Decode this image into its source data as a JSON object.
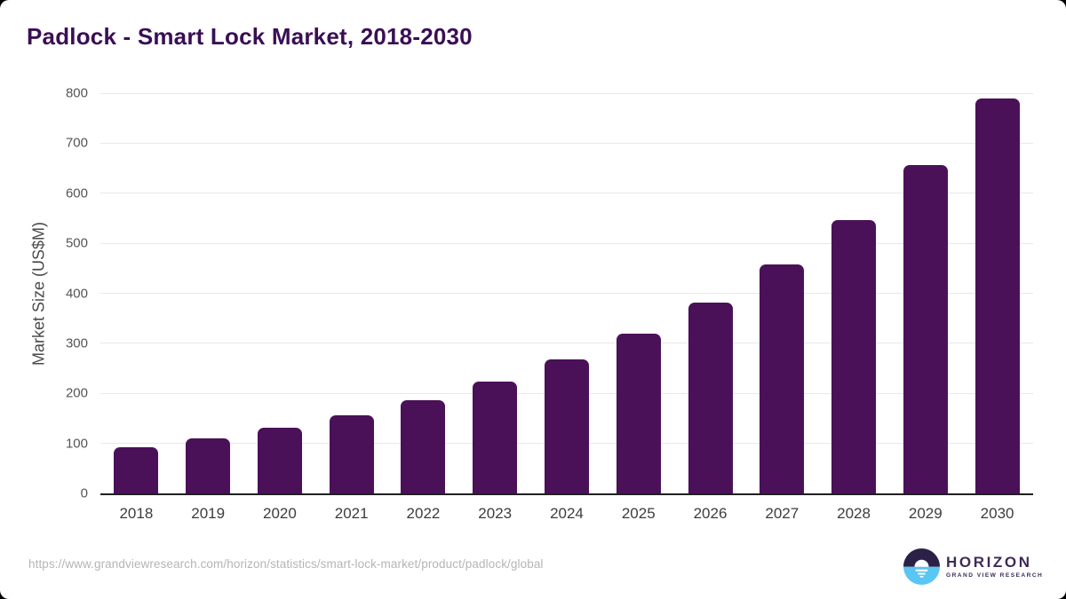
{
  "chart_data": {
    "type": "bar",
    "title": "Padlock - Smart Lock Market, 2018-2030",
    "categories": [
      "2018",
      "2019",
      "2020",
      "2021",
      "2022",
      "2023",
      "2024",
      "2025",
      "2026",
      "2027",
      "2028",
      "2029",
      "2030"
    ],
    "values": [
      93,
      110,
      132,
      157,
      187,
      224,
      267,
      320,
      382,
      457,
      547,
      657,
      790
    ],
    "xlabel": "",
    "ylabel": "Market Size (US$M)",
    "ylim": [
      0,
      800
    ],
    "yticks": [
      0,
      100,
      200,
      300,
      400,
      500,
      600,
      700,
      800
    ],
    "grid": true,
    "legend": false,
    "bar_color": "#4a1158"
  },
  "footer": {
    "source_url": "https://www.grandviewresearch.com/horizon/statistics/smart-lock-market/product/padlock/global",
    "logo": {
      "brand": "HORIZON",
      "sub": "GRAND VIEW RESEARCH",
      "icon": "horizon-sunrise-circle"
    }
  },
  "colors": {
    "bar": "#4a1158",
    "title": "#3a0f55",
    "gridline": "#e8e8e8",
    "axis": "#1f1f1f",
    "y_tick_label": "#555555",
    "x_tick_label": "#3d3d3d",
    "y_axis_title": "#4a4a4a",
    "source_url": "#b5b5b5",
    "logo_dark": "#2b2147",
    "logo_blue": "#59c6f3",
    "logo_text": "#3e2b56"
  }
}
